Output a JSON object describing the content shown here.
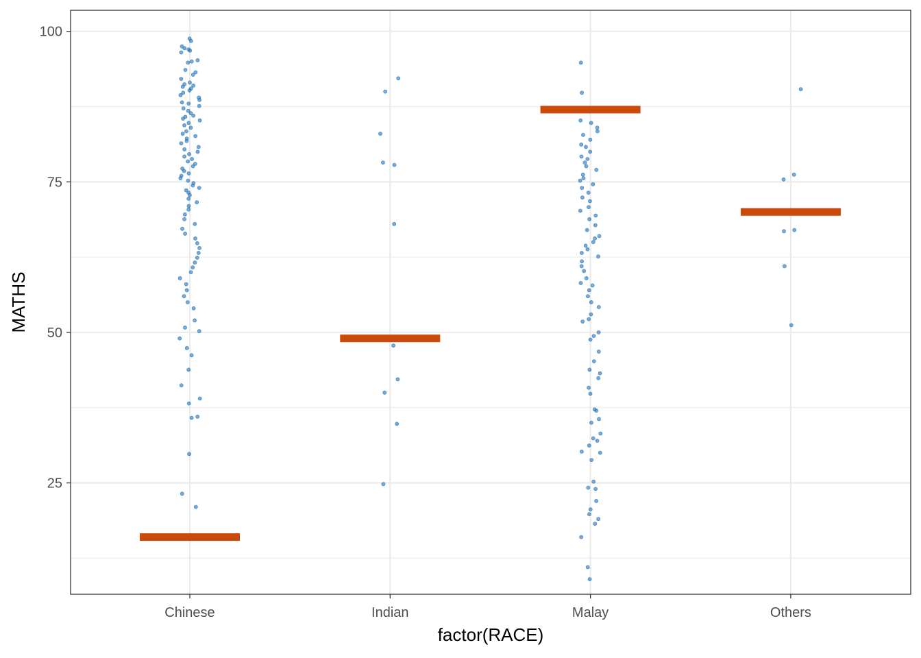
{
  "chart_data": {
    "type": "scatter",
    "subtype": "jitter-strip-with-summary-bars",
    "title": "",
    "xlabel": "factor(RACE)",
    "ylabel": "MATHS",
    "categories": [
      "Chinese",
      "Indian",
      "Malay",
      "Others"
    ],
    "ylim": [
      6.5,
      103.5
    ],
    "yticks": [
      25,
      50,
      75,
      100
    ],
    "grid": true,
    "legend": "none",
    "colors": {
      "points": "#1f6fb4",
      "summary": "#c94a0a",
      "grid": "#ebebeb",
      "frame": "#333333"
    },
    "summary_values": [
      16,
      49,
      87,
      70
    ],
    "points": {
      "Chinese": [
        98.8,
        98.4,
        97.5,
        97.2,
        97.0,
        96.8,
        96.5,
        95.2,
        95.0,
        94.8,
        93.6,
        93.2,
        92.8,
        92.1,
        91.5,
        91.2,
        91.0,
        90.8,
        90.5,
        90.2,
        89.8,
        89.4,
        89.0,
        88.6,
        88.2,
        88.0,
        87.6,
        87.2,
        86.8,
        86.4,
        86.0,
        85.8,
        85.5,
        85.2,
        84.8,
        84.4,
        84.0,
        83.4,
        83.0,
        82.6,
        82.2,
        81.8,
        81.4,
        80.8,
        80.4,
        80.0,
        79.6,
        79.2,
        78.8,
        78.4,
        78.0,
        77.6,
        77.2,
        76.8,
        76.4,
        76.0,
        75.6,
        75.2,
        74.8,
        74.4,
        74.0,
        73.6,
        73.2,
        72.8,
        72.2,
        71.6,
        71.0,
        70.4,
        69.6,
        68.8,
        68.0,
        67.2,
        66.4,
        65.6,
        64.8,
        64.0,
        63.2,
        62.4,
        61.6,
        60.8,
        60.0,
        59.0,
        58.0,
        57.0,
        56.0,
        55.0,
        54.0,
        52.0,
        50.8,
        50.2,
        49.0,
        47.4,
        46.2,
        43.8,
        41.2,
        39.0,
        38.2,
        36.0,
        35.8,
        29.8,
        23.2,
        21.0
      ],
      "Indian": [
        92.2,
        90.0,
        83.0,
        78.2,
        77.8,
        68.0,
        47.8,
        42.2,
        40.0,
        34.8,
        24.8
      ],
      "Malay": [
        94.8,
        89.8,
        85.2,
        84.8,
        84.0,
        83.4,
        82.8,
        82.0,
        81.2,
        80.8,
        80.0,
        79.2,
        78.8,
        78.2,
        77.6,
        77.0,
        76.2,
        75.6,
        75.2,
        74.6,
        74.0,
        73.2,
        72.4,
        71.8,
        70.8,
        70.2,
        69.4,
        68.8,
        67.8,
        67.0,
        66.0,
        65.6,
        65.0,
        64.4,
        63.8,
        63.2,
        62.6,
        61.8,
        61.0,
        60.2,
        59.0,
        58.2,
        57.8,
        57.0,
        56.0,
        55.0,
        54.2,
        53.0,
        52.2,
        51.8,
        50.0,
        49.4,
        48.8,
        46.8,
        45.2,
        43.8,
        43.2,
        42.4,
        40.8,
        39.8,
        37.2,
        37.0,
        35.6,
        35.0,
        33.2,
        32.4,
        32.0,
        31.2,
        30.2,
        30.0,
        28.8,
        25.2,
        24.2,
        24.0,
        22.0,
        20.6,
        19.8,
        19.0,
        18.2,
        16.0,
        11.0,
        9.0
      ],
      "Others": [
        90.4,
        76.2,
        75.4,
        67.0,
        66.8,
        61.0,
        51.2
      ]
    }
  }
}
